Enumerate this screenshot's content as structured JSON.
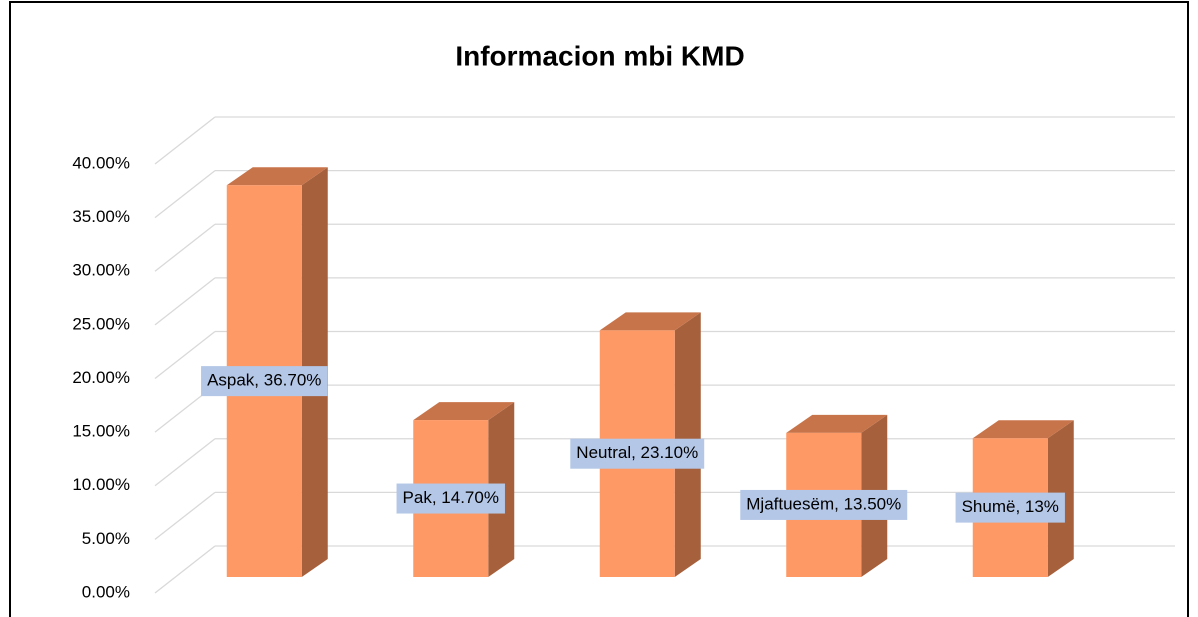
{
  "chart_data": {
    "type": "bar3d",
    "title": "Informacion mbi KMD",
    "categories": [
      "Aspak",
      "Pak",
      "Neutral",
      "Mjaftuesëm",
      "Shumë"
    ],
    "values": [
      36.7,
      14.7,
      23.1,
      13.5,
      13
    ],
    "value_labels": [
      "Aspak, 36.70%",
      "Pak, 14.70%",
      "Neutral, 23.10%",
      "Mjaftuesëm, 13.50%",
      "Shumë, 13%"
    ],
    "color": "#fe9966",
    "ylim": [
      0,
      40
    ],
    "yticks": [
      {
        "value": 0,
        "label": "0.00%"
      },
      {
        "value": 5,
        "label": "5.00%"
      },
      {
        "value": 10,
        "label": "10.00%"
      },
      {
        "value": 15,
        "label": "15.00%"
      },
      {
        "value": 20,
        "label": "20.00%"
      },
      {
        "value": 25,
        "label": "25.00%"
      },
      {
        "value": 30,
        "label": "30.00%"
      },
      {
        "value": 35,
        "label": "35.00%"
      },
      {
        "value": 40,
        "label": "40.00%"
      }
    ],
    "grid": true
  }
}
